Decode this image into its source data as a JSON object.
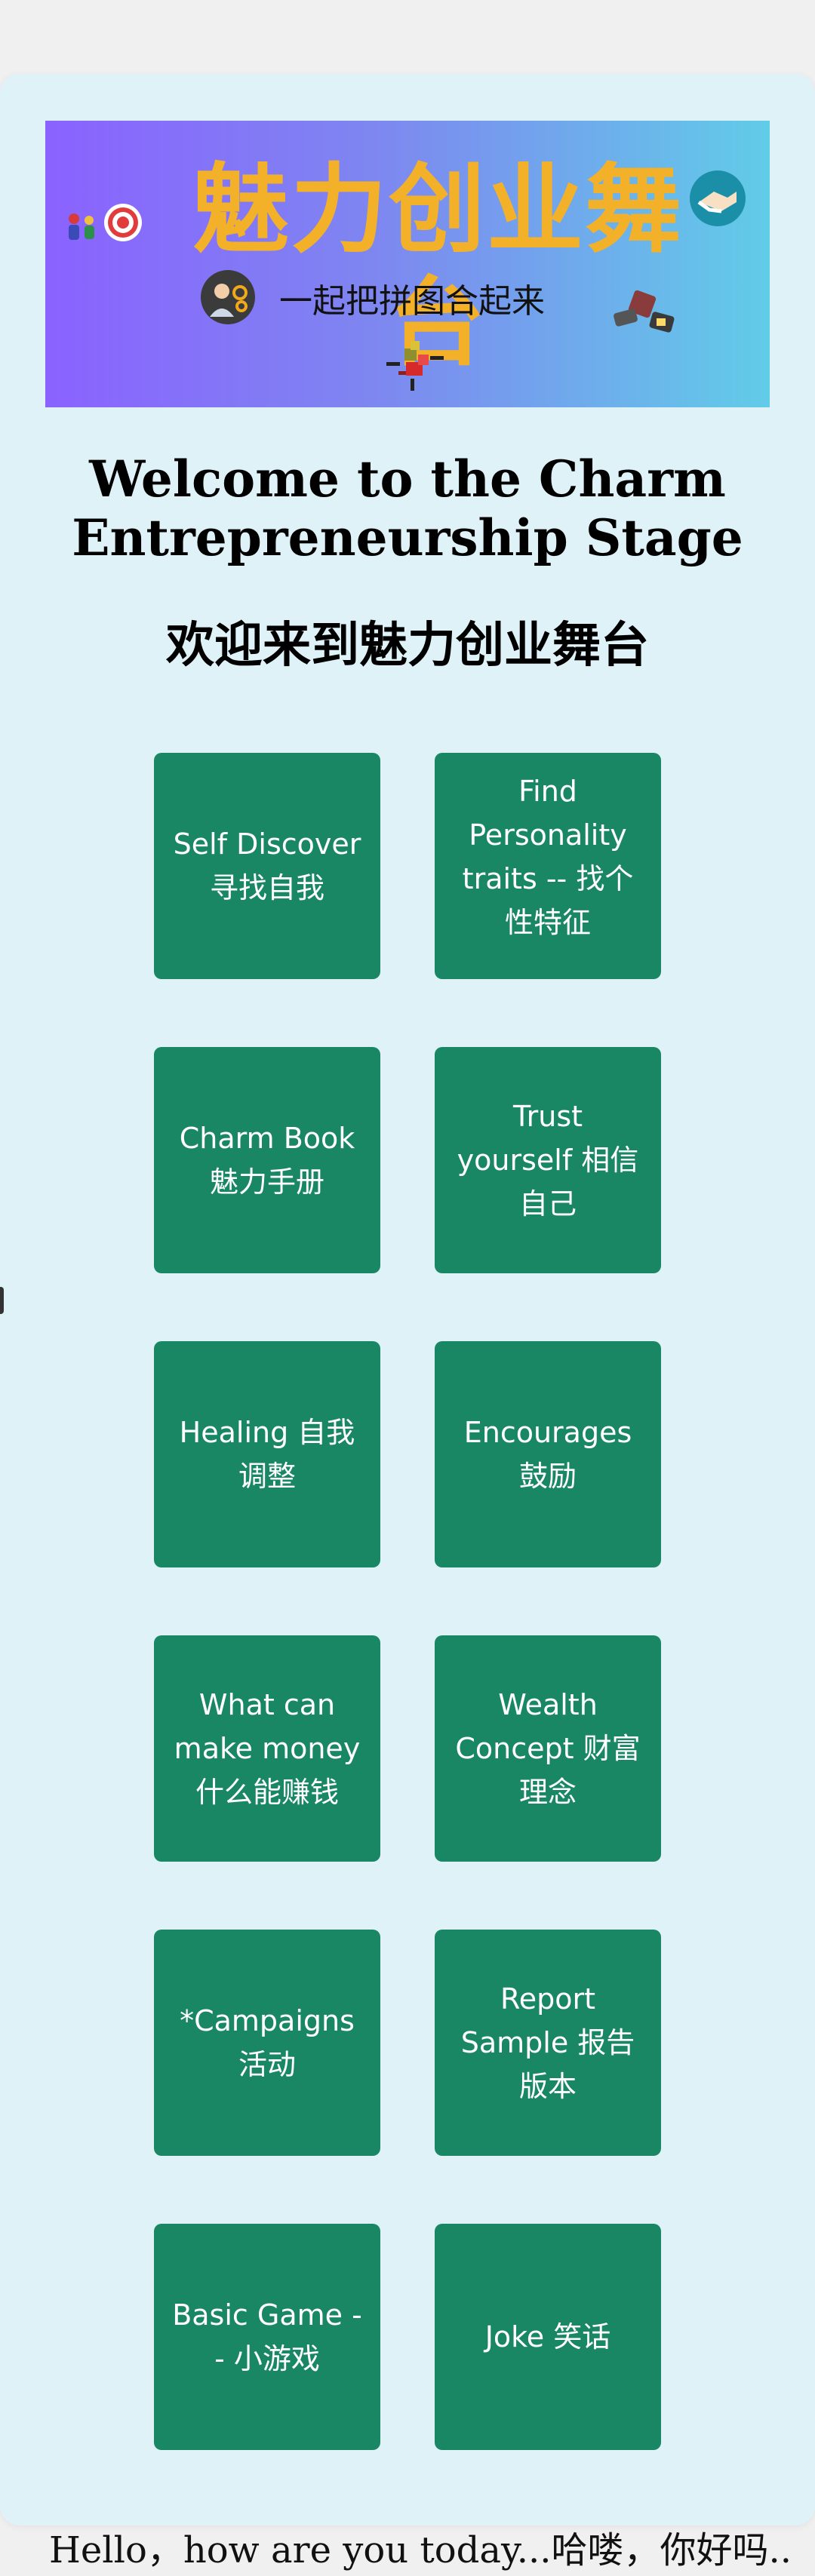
{
  "banner": {
    "title": "魅力创业舞台",
    "subtitle": "一起把拼图合起来"
  },
  "welcome": {
    "en": "Welcome to the Charm Entrepreneurship Stage",
    "cn": "欢迎来到魅力创业舞台"
  },
  "tiles": [
    {
      "label": "Self Discover 寻找自我"
    },
    {
      "label": "Find Personality traits -- 找个性特征"
    },
    {
      "label": "Charm Book 魅力手册"
    },
    {
      "label": "Trust yourself 相信自己"
    },
    {
      "label": "Healing 自我调整"
    },
    {
      "label": "Encourages 鼓励"
    },
    {
      "label": "What can make money 什么能赚钱"
    },
    {
      "label": "Wealth Concept 财富理念"
    },
    {
      "label": "*Campaigns 活动"
    },
    {
      "label": "Report Sample 报告版本"
    },
    {
      "label": "Basic Game -- 小游戏"
    },
    {
      "label": "Joke 笑话"
    }
  ],
  "footer": {
    "greeting": "Hello，how are you today...哈喽，你好吗..."
  },
  "colors": {
    "page_bg": "#f0f0f0",
    "card_bg": "#dff2f8",
    "tile_bg": "#198764",
    "banner_title": "#f3b12a"
  }
}
